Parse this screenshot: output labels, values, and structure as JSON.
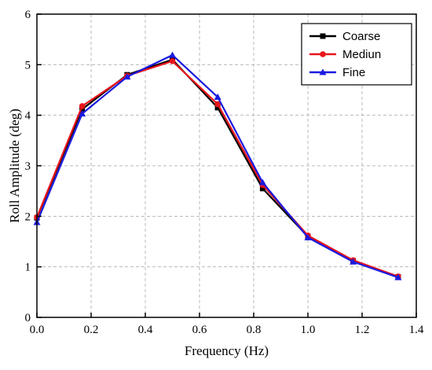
{
  "chart_data": {
    "type": "line",
    "xlabel": "Frequency (Hz)",
    "ylabel": "Roll Amplitude (deg)",
    "xlim": [
      0.0,
      1.4
    ],
    "ylim": [
      0,
      6
    ],
    "xticks": [
      "0.0",
      "0.2",
      "0.4",
      "0.6",
      "0.8",
      "1.0",
      "1.2",
      "1.4"
    ],
    "yticks": [
      "0",
      "1",
      "2",
      "3",
      "4",
      "5",
      "6"
    ],
    "grid": true,
    "legend_position": "top-right",
    "x": [
      0.0,
      0.167,
      0.333,
      0.5,
      0.667,
      0.833,
      1.0,
      1.167,
      1.333
    ],
    "series": [
      {
        "name": "Coarse",
        "color": "#000000",
        "marker": "square",
        "values": [
          1.97,
          4.12,
          4.8,
          5.1,
          4.15,
          2.55,
          1.6,
          1.12,
          0.8
        ]
      },
      {
        "name": "Mediun",
        "color": "#e8141b",
        "marker": "circle",
        "values": [
          1.98,
          4.18,
          4.78,
          5.07,
          4.22,
          2.62,
          1.62,
          1.13,
          0.81
        ]
      },
      {
        "name": "Fine",
        "color": "#1a1adf",
        "marker": "triangle",
        "values": [
          1.88,
          4.03,
          4.76,
          5.19,
          4.36,
          2.67,
          1.58,
          1.1,
          0.79
        ]
      }
    ]
  }
}
